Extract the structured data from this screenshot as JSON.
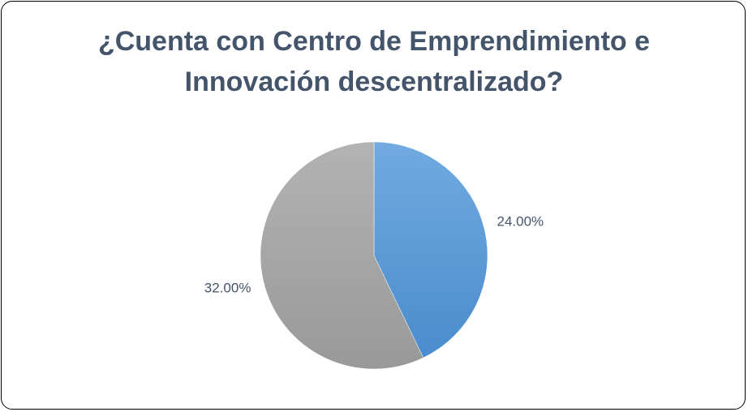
{
  "chart_data": {
    "type": "pie",
    "title": "¿Cuenta con Centro de Emprendimiento e Innovación descentralizado?",
    "values": [
      24,
      32
    ],
    "value_labels": [
      "24.00%",
      "32.00%"
    ],
    "colors": [
      "#5b9bd5",
      "#a5a5a5"
    ]
  }
}
